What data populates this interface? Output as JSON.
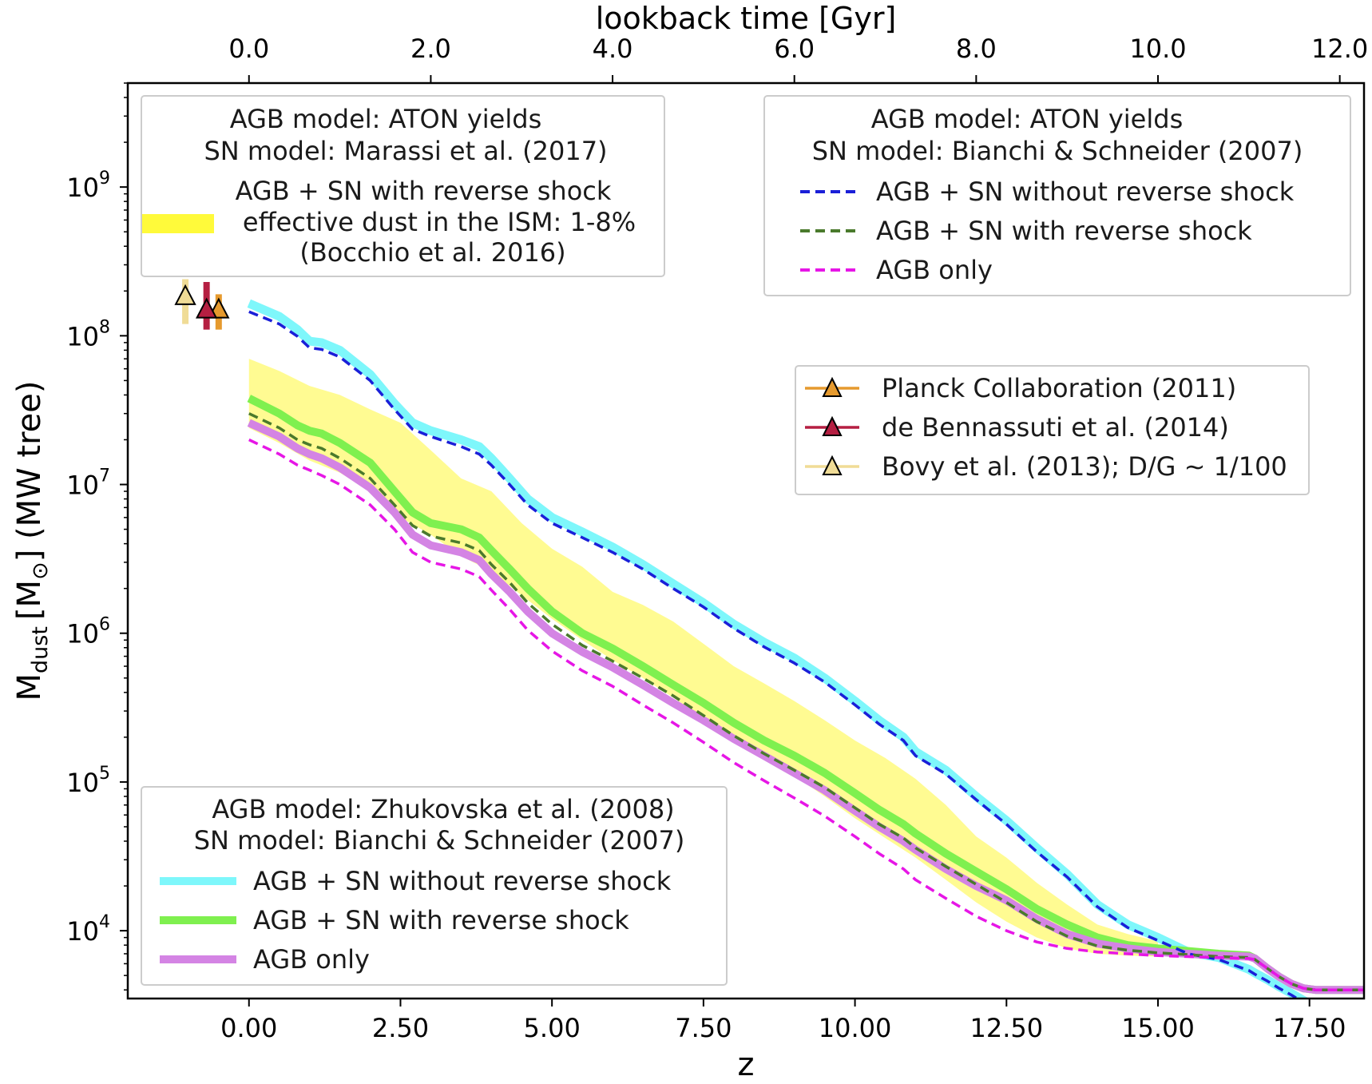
{
  "chart_data": {
    "type": "line",
    "xlabel": "z",
    "ylabel_main": "M",
    "ylabel_sub": "dust",
    "ylabel_unit": "[M",
    "ylabel_sun": "⊙",
    "ylabel_rest": "] (MW tree)",
    "top_xlabel": "lookback time [Gyr]",
    "xlim": [
      -2.0,
      18.4
    ],
    "ylim": [
      3500,
      5000000000
    ],
    "yscale": "log",
    "x_ticks": [
      0,
      2.5,
      5,
      7.5,
      10,
      12.5,
      15,
      17.5
    ],
    "x_tick_labels": [
      "0.00",
      "2.50",
      "5.00",
      "7.50",
      "10.00",
      "12.50",
      "15.00",
      "17.50"
    ],
    "y_ticks": [
      10000,
      100000,
      1000000,
      10000000,
      100000000,
      1000000000
    ],
    "y_tick_exponents": [
      "4",
      "5",
      "6",
      "7",
      "8",
      "9"
    ],
    "top_ticks": [
      {
        "label": "0.0",
        "z": 0
      },
      {
        "label": "2.0",
        "z": 3
      },
      {
        "label": "4.0",
        "z": 6
      },
      {
        "label": "6.0",
        "z": 9
      },
      {
        "label": "8.0",
        "z": 12
      },
      {
        "label": "10.0",
        "z": 15
      },
      {
        "label": "12.0",
        "z": 18
      }
    ],
    "z": [
      0,
      0.5,
      0.8,
      1.0,
      1.2,
      1.5,
      2.0,
      2.4,
      2.7,
      3.0,
      3.5,
      3.8,
      4.0,
      4.3,
      4.6,
      5.0,
      5.5,
      6.0,
      6.5,
      7.0,
      7.5,
      8.0,
      8.5,
      9.0,
      9.5,
      10.0,
      10.4,
      10.8,
      11.0,
      11.5,
      12.0,
      12.5,
      13.0,
      13.5,
      14.0,
      14.5,
      15.0,
      15.5,
      16.0,
      16.5,
      16.6,
      16.8,
      17.0,
      17.2,
      17.4,
      17.6,
      18.0,
      18.4
    ],
    "series": [
      {
        "name": "AGB + SN without reverse shock",
        "group": "zhukovska",
        "color": "#7ef7fb",
        "width": 11,
        "dash": "",
        "values": [
          165000000.0,
          135000000.0,
          110000000.0,
          92000000.0,
          90000000.0,
          80000000.0,
          55000000.0,
          35000000.0,
          26000000.0,
          23000000.0,
          20000000.0,
          18000000.0,
          15000000.0,
          11000000.0,
          8000000.0,
          6000000.0,
          4800000.0,
          3800000.0,
          2900000.0,
          2150000.0,
          1600000.0,
          1150000.0,
          870000.0,
          680000.0,
          500000.0,
          350000.0,
          260000.0,
          200000.0,
          160000.0,
          120000.0,
          80000.0,
          55000.0,
          36000.0,
          24000.0,
          15000.0,
          11000.0,
          9000.0,
          7200.0,
          6600.0,
          5500.0,
          5200.0,
          4700.0,
          4200.0,
          3800.0,
          3400.0,
          3100.0,
          2700.0,
          2400.0
        ]
      },
      {
        "name": "AGB + SN with reverse shock",
        "group": "zhukovska",
        "color": "#7ff04f",
        "width": 10,
        "dash": "",
        "values": [
          38000000.0,
          30000000.0,
          25000000.0,
          23000000.0,
          22000000.0,
          19000000.0,
          14000000.0,
          9000000.0,
          6500000.0,
          5500000.0,
          5000000.0,
          4400000.0,
          3600000.0,
          2700000.0,
          2000000.0,
          1400000.0,
          1000000.0,
          790000.0,
          600000.0,
          450000.0,
          340000.0,
          250000.0,
          190000.0,
          150000.0,
          115000.0,
          84000.0,
          65000.0,
          52000.0,
          45000.0,
          33000.0,
          25000.0,
          19000.0,
          14000.0,
          11000.0,
          9000.0,
          8000.0,
          7600.0,
          7300.0,
          7000.0,
          6800.0,
          6500.0,
          5600.0,
          4900.0,
          4400.0,
          4100.0,
          4000.0,
          4000.0,
          4000.0
        ]
      },
      {
        "name": "AGB only",
        "group": "zhukovska",
        "color": "#d484e4",
        "width": 10,
        "dash": "",
        "values": [
          26000000.0,
          21000000.0,
          17500000.0,
          16000000.0,
          15000000.0,
          13000000.0,
          9500000.0,
          6500000.0,
          4600000.0,
          3900000.0,
          3500000.0,
          3100000.0,
          2500000.0,
          1900000.0,
          1400000.0,
          1000000.0,
          750000.0,
          590000.0,
          450000.0,
          340000.0,
          260000.0,
          195000.0,
          150000.0,
          115000.0,
          88000.0,
          64000.0,
          50000.0,
          40000.0,
          35000.0,
          26000.0,
          20000.0,
          16000.0,
          12000.0,
          9500.0,
          8200.0,
          7600.0,
          7200.0,
          7000.0,
          6800.0,
          6700.0,
          6500.0,
          5600.0,
          4900.0,
          4400.0,
          4100.0,
          4000.0,
          4000.0,
          4000.0
        ]
      },
      {
        "name": "AGB + SN without reverse shock",
        "group": "aton",
        "color": "#1a1fd8",
        "width": 3.5,
        "dash": "12,7",
        "values": [
          145000000.0,
          120000000.0,
          99000000.0,
          83000000.0,
          81000000.0,
          72000000.0,
          50000000.0,
          32000000.0,
          23500000.0,
          21000000.0,
          18000000.0,
          16000000.0,
          13500000.0,
          10000000.0,
          7300000.0,
          5500000.0,
          4400000.0,
          3500000.0,
          2700000.0,
          2000000.0,
          1500000.0,
          1080000.0,
          810000.0,
          630000.0,
          470000.0,
          330000.0,
          245000.0,
          190000.0,
          150000.0,
          113000.0,
          76000.0,
          52000.0,
          34000.0,
          23000.0,
          14500.0,
          10500.0,
          8600.0,
          7000.0,
          6400.0,
          5400.0,
          5100.0,
          4600.0,
          4100.0,
          3700.0,
          3300.0,
          3000.0,
          2600.0,
          2300.0
        ]
      },
      {
        "name": "AGB + SN with reverse shock",
        "group": "aton",
        "color": "#4a7a2c",
        "width": 3.5,
        "dash": "12,7",
        "values": [
          30000000.0,
          24000000.0,
          20000000.0,
          18500000.0,
          17500000.0,
          15000000.0,
          11000000.0,
          7300000.0,
          5300000.0,
          4500000.0,
          4050000.0,
          3600000.0,
          2900000.0,
          2200000.0,
          1600000.0,
          1150000.0,
          830000.0,
          650000.0,
          500000.0,
          380000.0,
          280000.0,
          205000.0,
          155000.0,
          120000.0,
          92000.0,
          67000.0,
          52000.0,
          42000.0,
          36000.0,
          27000.0,
          20500.0,
          15500.0,
          11500.0,
          9200.0,
          7900.0,
          7400.0,
          7100.0,
          6900.0,
          6700.0,
          6600.0,
          6400.0,
          5600.0,
          4900.0,
          4400.0,
          4100.0,
          4000.0,
          4000.0,
          4000.0
        ]
      },
      {
        "name": "AGB only",
        "group": "aton",
        "color": "#e616e6",
        "width": 3.5,
        "dash": "12,7",
        "values": [
          20000000.0,
          16000000.0,
          13500000.0,
          12500000.0,
          11500000.0,
          10000000.0,
          7300000.0,
          5000000.0,
          3500000.0,
          3000000.0,
          2700000.0,
          2400000.0,
          1950000.0,
          1450000.0,
          1050000.0,
          760000.0,
          560000.0,
          440000.0,
          330000.0,
          250000.0,
          185000.0,
          135000.0,
          102000.0,
          78000.0,
          59000.0,
          43000.0,
          33000.0,
          26000.0,
          22000.0,
          16500.0,
          12500.0,
          10000.0,
          8400.0,
          7600.0,
          7200.0,
          7000.0,
          6800.0,
          6700.0,
          6600.0,
          6500.0,
          6400.0,
          5600.0,
          4900.0,
          4400.0,
          4100.0,
          4000.0,
          4000.0,
          4000.0
        ]
      }
    ],
    "band": {
      "name": "AGB + SN with reverse shock effective dust in the ISM: 1-8%",
      "color": "#fffa6e",
      "opacity": 0.75,
      "z": [
        0,
        0.5,
        1.0,
        1.5,
        2.0,
        2.5,
        3.0,
        3.5,
        4.0,
        4.5,
        5.0,
        5.5,
        6.0,
        6.5,
        7.0,
        7.5,
        8.0,
        8.5,
        9.0,
        9.5,
        10.0,
        10.5,
        11.0,
        11.5,
        12.0,
        12.5,
        13.0,
        13.5,
        14.0,
        14.5,
        15.0
      ],
      "upper": [
        70000000.0,
        58000000.0,
        46000000.0,
        40000000.0,
        32000000.0,
        26000000.0,
        17000000.0,
        11000000.0,
        9000000.0,
        5500000.0,
        3700000.0,
        2800000.0,
        1900000.0,
        1550000.0,
        1200000.0,
        850000.0,
        600000.0,
        460000.0,
        350000.0,
        260000.0,
        190000.0,
        145000.0,
        105000.0,
        70000.0,
        43000.0,
        31000.0,
        21000.0,
        15000.0,
        11000.0,
        9500.0,
        8500.0
      ],
      "lower": [
        24000000.0,
        19000000.0,
        14500000.0,
        12000000.0,
        9000000.0,
        6000000.0,
        4600000.0,
        3300000.0,
        2600000.0,
        1800000.0,
        1250000.0,
        900000.0,
        660000.0,
        500000.0,
        370000.0,
        270000.0,
        200000.0,
        150000.0,
        110000.0,
        80000.0,
        57000.0,
        42000.0,
        31000.0,
        22000.0,
        15500.0,
        11500.0,
        9000.0,
        7600.0,
        7000.0,
        6800.0,
        6700.0
      ]
    },
    "observations": [
      {
        "name": "Planck Collaboration (2011)",
        "color": "#e69a2e",
        "z": -0.5,
        "y": 148000000.0,
        "ylo": 110000000.0,
        "yhi": 190000000.0
      },
      {
        "name": "de Bennassuti et al. (2014)",
        "color": "#b51f42",
        "z": -0.7,
        "y": 148000000.0,
        "ylo": 110000000.0,
        "yhi": 230000000.0
      },
      {
        "name": "Bovy et al. (2013); D/G ~ 1/100",
        "color": "#f0dc96",
        "z": -1.05,
        "y": 182000000.0,
        "ylo": 120000000.0,
        "yhi": 240000000.0
      }
    ],
    "legend_top_left": {
      "line1": "AGB model: ATON yields",
      "line2": "SN model: Marassi et al. (2017)",
      "entry_line1": "AGB + SN with reverse shock",
      "entry_line2": "effective dust in the ISM: 1-8%",
      "entry_line3": "(Bocchio et al. 2016)"
    },
    "legend_top_right": {
      "line1": "AGB model: ATON yields",
      "line2": "SN model: Bianchi & Schneider (2007)",
      "entries": [
        "AGB + SN without reverse shock",
        "AGB + SN with reverse shock",
        "AGB only"
      ]
    },
    "legend_obs": {
      "entries": [
        "Planck Collaboration (2011)",
        "de Bennassuti et al. (2014)",
        "Bovy et al. (2013); D/G ∼ 1/100"
      ]
    },
    "legend_bottom_left": {
      "line1": "AGB model: Zhukovska et al. (2008)",
      "line2": "SN model: Bianchi & Schneider (2007)",
      "entries": [
        "AGB + SN without reverse shock",
        "AGB + SN with reverse shock",
        "AGB only"
      ]
    }
  }
}
